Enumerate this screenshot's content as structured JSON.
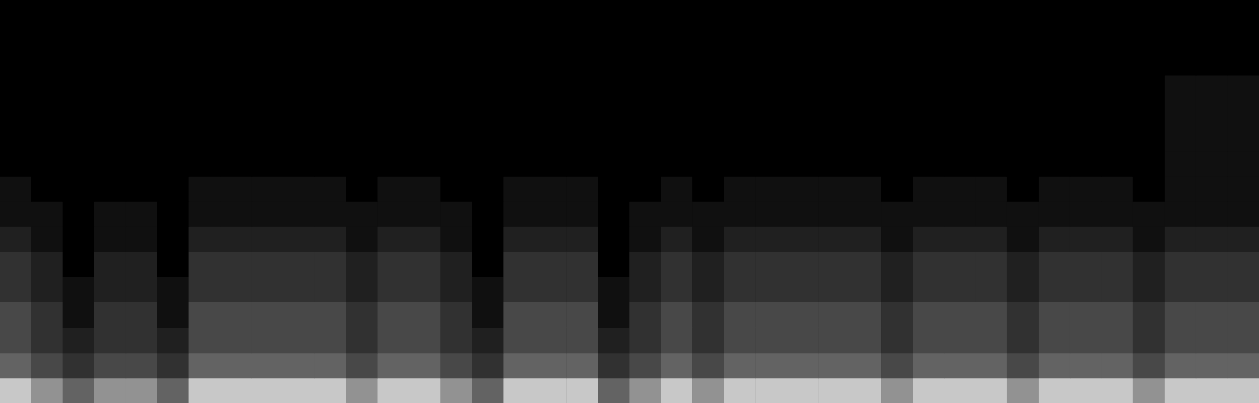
{
  "chart_data": {
    "type": "heatmap",
    "tick_labels": false,
    "grid": false,
    "zlim": [
      0,
      7
    ],
    "cells": [
      [
        7,
        6,
        5,
        6,
        6,
        5,
        7,
        7,
        7,
        7,
        7,
        6,
        7,
        7,
        6,
        5,
        7,
        7,
        7,
        5,
        6,
        7,
        6,
        7,
        7,
        7,
        7,
        7,
        6,
        7,
        7,
        7,
        6,
        7,
        7,
        7,
        6,
        7,
        7,
        7
      ],
      [
        5,
        4,
        3,
        4,
        4,
        3,
        5,
        5,
        5,
        5,
        5,
        4,
        5,
        5,
        4,
        3,
        5,
        5,
        5,
        3,
        4,
        5,
        4,
        5,
        5,
        5,
        5,
        5,
        4,
        5,
        5,
        5,
        4,
        5,
        5,
        5,
        4,
        5,
        5,
        5
      ],
      [
        4,
        3,
        2,
        3,
        3,
        2,
        4,
        4,
        4,
        4,
        4,
        3,
        4,
        4,
        3,
        2,
        4,
        4,
        4,
        2,
        3,
        4,
        3,
        4,
        4,
        4,
        4,
        4,
        3,
        4,
        4,
        4,
        3,
        4,
        4,
        4,
        3,
        4,
        4,
        4
      ],
      [
        4,
        3,
        1,
        3,
        3,
        1,
        4,
        4,
        4,
        4,
        4,
        3,
        4,
        4,
        3,
        1,
        4,
        4,
        4,
        1,
        3,
        4,
        3,
        4,
        4,
        4,
        4,
        4,
        3,
        4,
        4,
        4,
        3,
        4,
        4,
        4,
        3,
        4,
        4,
        4
      ],
      [
        3,
        2,
        1,
        2,
        2,
        1,
        3,
        3,
        3,
        3,
        3,
        2,
        3,
        3,
        2,
        1,
        3,
        3,
        3,
        1,
        2,
        3,
        2,
        3,
        3,
        3,
        3,
        3,
        2,
        3,
        3,
        3,
        2,
        3,
        3,
        3,
        2,
        3,
        3,
        3
      ],
      [
        3,
        2,
        0,
        2,
        2,
        0,
        3,
        3,
        3,
        3,
        3,
        2,
        3,
        3,
        2,
        0,
        3,
        3,
        3,
        0,
        2,
        3,
        2,
        3,
        3,
        3,
        3,
        3,
        2,
        3,
        3,
        3,
        2,
        3,
        3,
        3,
        2,
        3,
        3,
        3
      ],
      [
        2,
        1,
        0,
        1,
        1,
        0,
        2,
        2,
        2,
        2,
        2,
        1,
        2,
        2,
        1,
        0,
        2,
        2,
        2,
        0,
        1,
        2,
        1,
        2,
        2,
        2,
        2,
        2,
        1,
        2,
        2,
        2,
        1,
        2,
        2,
        2,
        1,
        2,
        2,
        2
      ],
      [
        1,
        1,
        0,
        1,
        1,
        0,
        1,
        1,
        1,
        1,
        1,
        1,
        1,
        1,
        1,
        0,
        1,
        1,
        1,
        0,
        1,
        1,
        1,
        1,
        1,
        1,
        1,
        1,
        1,
        1,
        1,
        1,
        1,
        1,
        1,
        1,
        1,
        1,
        1,
        1
      ],
      [
        1,
        0,
        0,
        0,
        0,
        0,
        1,
        1,
        1,
        1,
        1,
        0,
        1,
        1,
        0,
        0,
        1,
        1,
        1,
        0,
        0,
        1,
        0,
        1,
        1,
        1,
        1,
        1,
        0,
        1,
        1,
        1,
        0,
        1,
        1,
        1,
        0,
        1,
        1,
        1
      ],
      [
        0,
        0,
        0,
        0,
        0,
        0,
        0,
        0,
        0,
        0,
        0,
        0,
        0,
        0,
        0,
        0,
        0,
        0,
        0,
        0,
        0,
        0,
        0,
        0,
        0,
        0,
        0,
        0,
        0,
        0,
        0,
        0,
        0,
        0,
        0,
        0,
        0,
        1,
        1,
        1
      ],
      [
        0,
        0,
        0,
        0,
        0,
        0,
        0,
        0,
        0,
        0,
        0,
        0,
        0,
        0,
        0,
        0,
        0,
        0,
        0,
        0,
        0,
        0,
        0,
        0,
        0,
        0,
        0,
        0,
        0,
        0,
        0,
        0,
        0,
        0,
        0,
        0,
        0,
        1,
        1,
        1
      ],
      [
        0,
        0,
        0,
        0,
        0,
        0,
        0,
        0,
        0,
        0,
        0,
        0,
        0,
        0,
        0,
        0,
        0,
        0,
        0,
        0,
        0,
        0,
        0,
        0,
        0,
        0,
        0,
        0,
        0,
        0,
        0,
        0,
        0,
        0,
        0,
        0,
        0,
        1,
        1,
        1
      ],
      [
        0,
        0,
        0,
        0,
        0,
        0,
        0,
        0,
        0,
        0,
        0,
        0,
        0,
        0,
        0,
        0,
        0,
        0,
        0,
        0,
        0,
        0,
        0,
        0,
        0,
        0,
        0,
        0,
        0,
        0,
        0,
        0,
        0,
        0,
        0,
        0,
        0,
        1,
        1,
        1
      ],
      [
        0,
        0,
        0,
        0,
        0,
        0,
        0,
        0,
        0,
        0,
        0,
        0,
        0,
        0,
        0,
        0,
        0,
        0,
        0,
        0,
        0,
        0,
        0,
        0,
        0,
        0,
        0,
        0,
        0,
        0,
        0,
        0,
        0,
        0,
        0,
        0,
        0,
        0,
        0,
        0
      ],
      [
        0,
        0,
        0,
        0,
        0,
        0,
        0,
        0,
        0,
        0,
        0,
        0,
        0,
        0,
        0,
        0,
        0,
        0,
        0,
        0,
        0,
        0,
        0,
        0,
        0,
        0,
        0,
        0,
        0,
        0,
        0,
        0,
        0,
        0,
        0,
        0,
        0,
        0,
        0,
        0
      ],
      [
        0,
        0,
        0,
        0,
        0,
        0,
        0,
        0,
        0,
        0,
        0,
        0,
        0,
        0,
        0,
        0,
        0,
        0,
        0,
        0,
        0,
        0,
        0,
        0,
        0,
        0,
        0,
        0,
        0,
        0,
        0,
        0,
        0,
        0,
        0,
        0,
        0,
        0,
        0,
        0
      ]
    ]
  }
}
